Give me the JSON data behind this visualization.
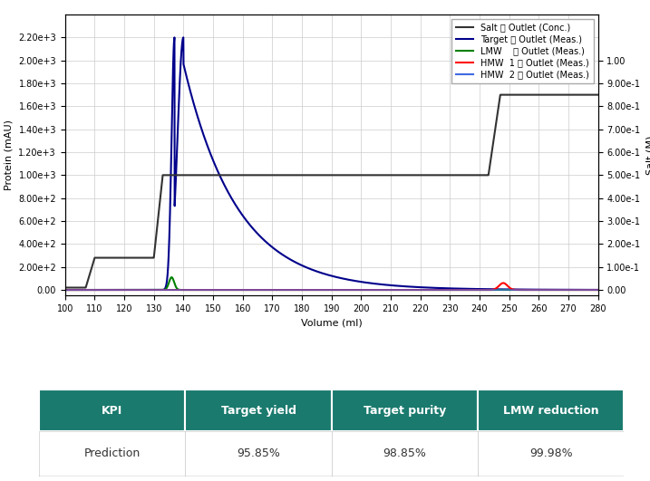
{
  "title": "",
  "xlabel": "Volume (ml)",
  "ylabel_left": "Protein (mAU)",
  "ylabel_right": "Salt (M)",
  "xlim": [
    100,
    280
  ],
  "ylim_left": [
    0,
    2400
  ],
  "ylim_right": [
    0,
    1.2
  ],
  "xticks": [
    100,
    110,
    120,
    130,
    140,
    150,
    160,
    170,
    180,
    190,
    200,
    210,
    220,
    230,
    240,
    250,
    260,
    270,
    280
  ],
  "yticks_left": [
    0,
    200,
    400,
    600,
    800,
    1000,
    1200,
    1400,
    1600,
    1800,
    2000,
    2200
  ],
  "ytick_labels_left": [
    "0.00",
    "2.00e+2",
    "4.00e+2",
    "6.00e+2",
    "8.00e+2",
    "1.00e+3",
    "1.20e+3",
    "1.40e+3",
    "1.60e+3",
    "1.80e+3",
    "2.00e+3",
    "2.20e+3"
  ],
  "yticks_right": [
    0.0,
    0.1,
    0.2,
    0.3,
    0.4,
    0.5,
    0.6,
    0.7,
    0.8,
    0.9,
    1.0
  ],
  "ytick_labels_right": [
    "0.00",
    "1.00e-1",
    "2.00e-1",
    "3.00e-1",
    "4.00e-1",
    "5.00e-1",
    "6.00e-1",
    "7.00e-1",
    "8.00e-1",
    "9.00e-1",
    "1.00"
  ],
  "legend_entries": [
    {
      "label": "Salt ␀ Outlet (Conc.)",
      "color": "#333333",
      "lw": 1.5,
      "ls": "-"
    },
    {
      "label": "Target ␀ Outlet (Meas.)",
      "color": "#00008B",
      "lw": 1.5,
      "ls": "-"
    },
    {
      "label": "LMW    ␀ Outlet (Meas.)",
      "color": "#008000",
      "lw": 1.5,
      "ls": "-"
    },
    {
      "label": "HMW  1 ␀ Outlet (Meas.)",
      "color": "#FF0000",
      "lw": 1.5,
      "ls": "-"
    },
    {
      "label": "HMW  2 ␀ Outlet (Meas.)",
      "color": "#4169E1",
      "lw": 1.5,
      "ls": "-"
    }
  ],
  "table_header_color": "#1a7a6e",
  "table_header_text_color": "#ffffff",
  "table_columns": [
    "KPI",
    "Target yield",
    "Target purity",
    "LMW reduction"
  ],
  "table_rows": [
    [
      "Prediction",
      "95.85%",
      "98.85%",
      "99.98%"
    ]
  ],
  "background_color": "#ffffff",
  "grid_color": "#cccccc"
}
